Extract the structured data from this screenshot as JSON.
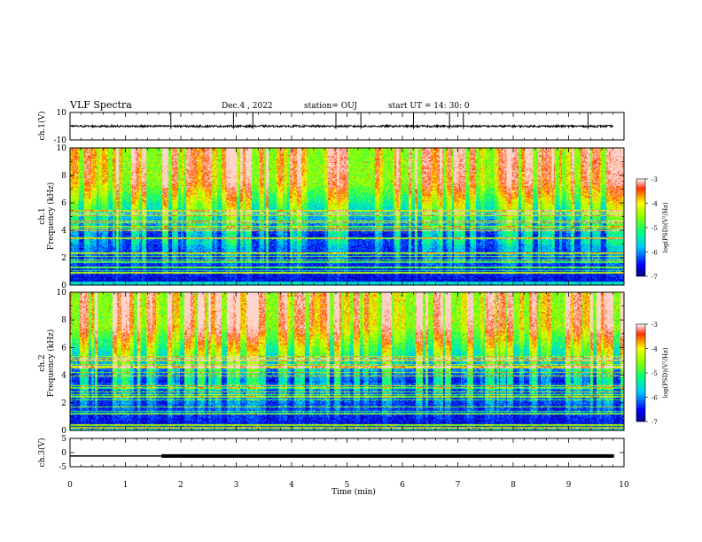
{
  "header": {
    "title": "VLF Spectra",
    "date": "Dec.4 , 2022",
    "station": "station= OUJ",
    "start": "start UT = 14: 30: 0"
  },
  "chart_data": [
    {
      "type": "line",
      "panel": "ch1-waveform",
      "ylabel": "ch.1(V)",
      "ylim": [
        -10,
        10
      ],
      "yticks": [
        "10",
        "-10"
      ],
      "xlim": [
        0,
        10
      ],
      "baseline": 0,
      "noise_amplitude": 0.7,
      "spike_times": [
        1.82,
        2.95,
        3.3,
        4.8,
        5.25,
        6.2,
        6.85,
        7.1,
        9.35
      ]
    },
    {
      "type": "heatmap",
      "panel": "ch1-spectrogram",
      "ylabel": "ch.1 Frequency (kHz)",
      "ylim": [
        0,
        10
      ],
      "yticks": [
        "0",
        "2",
        "4",
        "6",
        "8",
        "10"
      ],
      "xlim": [
        0,
        10
      ],
      "colorbar": {
        "label": "log(PSD)(V²/Hz)",
        "range": [
          -7,
          -3
        ],
        "ticks": [
          "-3",
          "-4",
          "-5",
          "-6",
          "-7"
        ]
      }
    },
    {
      "type": "heatmap",
      "panel": "ch2-spectrogram",
      "ylabel": "ch.2 Frequency (kHz)",
      "ylim": [
        0,
        10
      ],
      "yticks": [
        "0",
        "2",
        "4",
        "6",
        "8",
        "10"
      ],
      "xlim": [
        0,
        10
      ],
      "colorbar": {
        "label": "log(PSD)(V²/Hz)",
        "range": [
          -7,
          -3
        ],
        "ticks": [
          "-3",
          "-4",
          "-5",
          "-6",
          "-7"
        ]
      }
    },
    {
      "type": "line",
      "panel": "ch3-signal",
      "ylabel": "ch.3(V)",
      "ylim": [
        -5,
        5
      ],
      "yticks": [
        "5",
        "0",
        "-5"
      ],
      "xlim": [
        0,
        10
      ],
      "level": -1.2,
      "thick_from": 1.65
    }
  ],
  "xaxis": {
    "label": "Time (min)",
    "ticks": [
      "0",
      "1",
      "2",
      "3",
      "4",
      "5",
      "6",
      "7",
      "8",
      "9",
      "10"
    ]
  }
}
